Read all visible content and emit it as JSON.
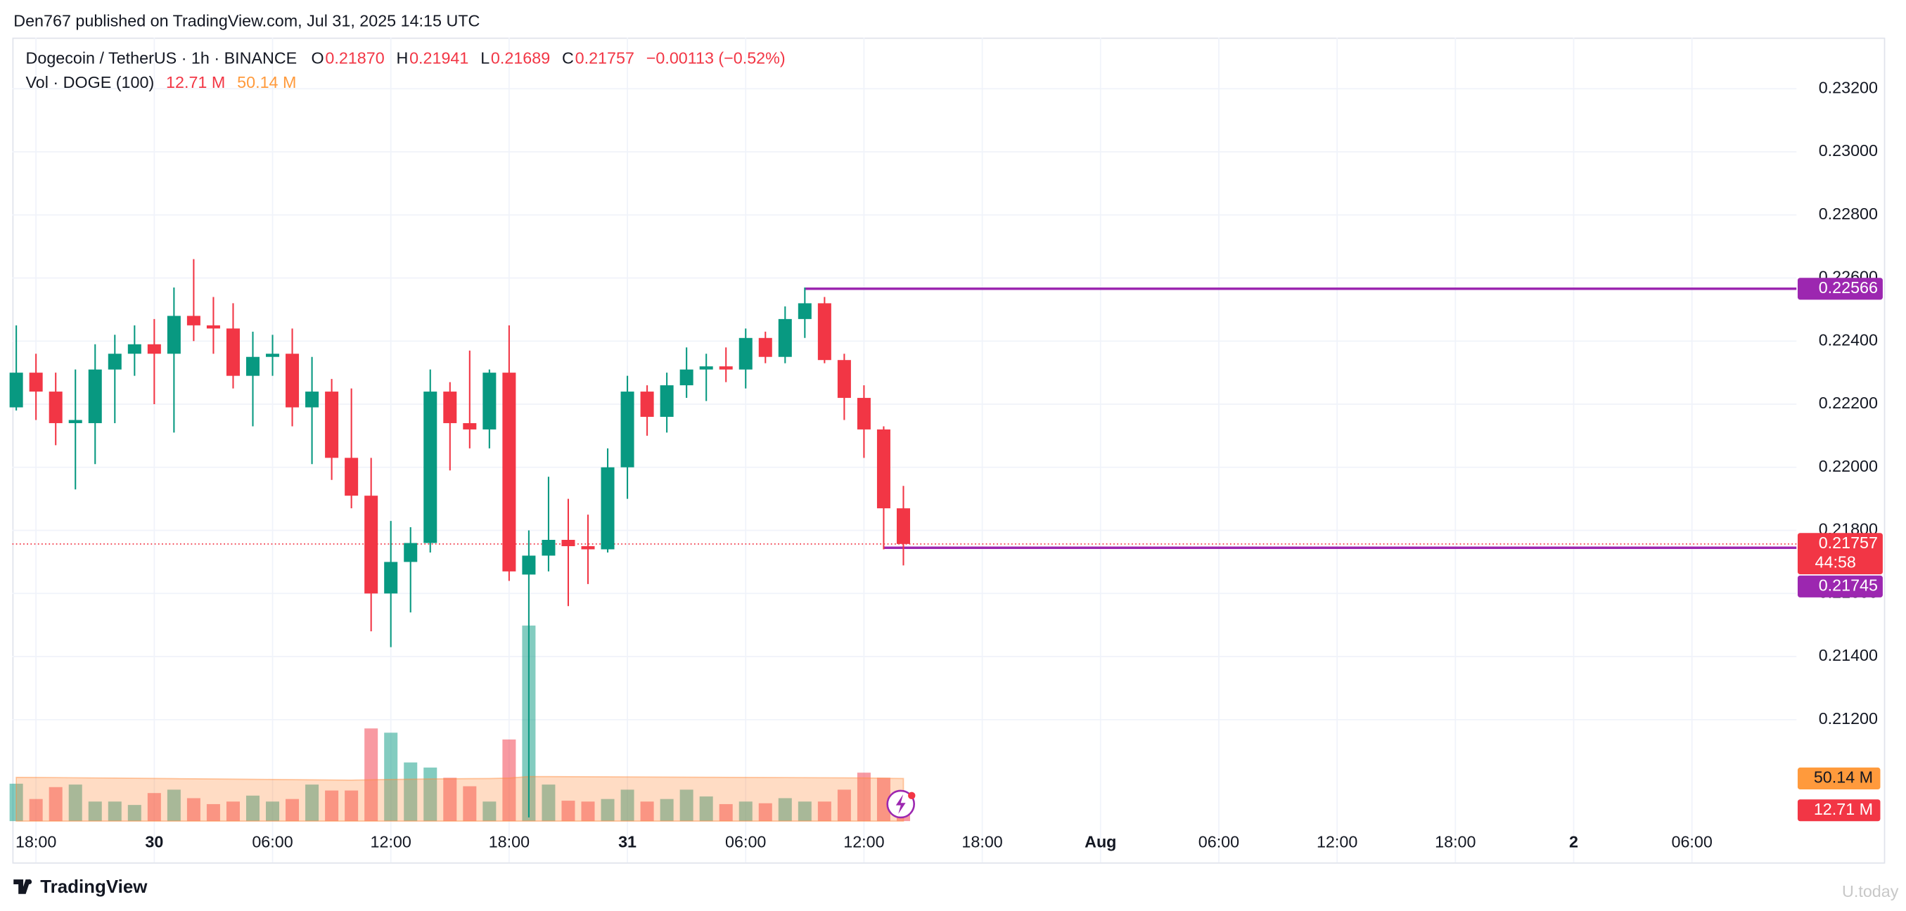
{
  "publisher": "Den767 published on TradingView.com, Jul 31, 2025 14:15 UTC",
  "footer": "TradingView",
  "watermark": "U.today",
  "chart_data": {
    "type": "candlestick",
    "symbol": "Dogecoin / TetherUS · 1h · BINANCE",
    "legend": {
      "o_label": "O",
      "open": "0.21870",
      "h_label": "H",
      "high": "0.21941",
      "l_label": "L",
      "low": "0.21689",
      "c_label": "C",
      "close": "0.21757",
      "change": "−0.00113 (−0.52%)"
    },
    "volume_legend": {
      "name": "Vol · DOGE (100)",
      "vol": "12.71 M",
      "vol_ma": "50.14 M"
    },
    "up_color": "#089981",
    "down_color": "#f23645",
    "volume_colors": {
      "up": "rgba(8,153,129,0.5)",
      "down": "rgba(242,54,69,0.5)",
      "ma": "rgba(255,138,60,0.3)"
    },
    "open": [
      0.2219,
      0.223,
      0.2224,
      0.2214,
      0.2214,
      0.2231,
      0.2236,
      0.2239,
      0.2236,
      0.2248,
      0.2245,
      0.2244,
      0.2229,
      0.2235,
      0.2236,
      0.2219,
      0.2224,
      0.2203,
      0.2191,
      0.216,
      0.217,
      0.2176,
      0.2224,
      0.2214,
      0.2212,
      0.223,
      0.2166,
      0.2172,
      0.2177,
      0.2175,
      0.2174,
      0.22,
      0.2224,
      0.2216,
      0.2226,
      0.2231,
      0.2232,
      0.2231,
      0.2241,
      0.2235,
      0.2247,
      0.2252,
      0.2234,
      0.2222,
      0.2212,
      0.2187
    ],
    "high": [
      0.2245,
      0.2236,
      0.223,
      0.2231,
      0.2239,
      0.2242,
      0.2245,
      0.2247,
      0.2257,
      0.2266,
      0.2254,
      0.2252,
      0.2243,
      0.2242,
      0.2244,
      0.2235,
      0.2228,
      0.2225,
      0.2203,
      0.2183,
      0.2181,
      0.2231,
      0.2227,
      0.2237,
      0.2231,
      0.2245,
      0.218,
      0.2197,
      0.219,
      0.2185,
      0.2206,
      0.2229,
      0.2226,
      0.223,
      0.2238,
      0.2236,
      0.2238,
      0.2244,
      0.2243,
      0.2251,
      0.2257,
      0.2254,
      0.2236,
      0.2226,
      0.2213,
      0.21941
    ],
    "low": [
      0.2218,
      0.2215,
      0.2207,
      0.2193,
      0.2201,
      0.2214,
      0.2229,
      0.222,
      0.2211,
      0.224,
      0.2236,
      0.2225,
      0.2213,
      0.2229,
      0.2213,
      0.2201,
      0.2196,
      0.2187,
      0.2148,
      0.2143,
      0.2154,
      0.2173,
      0.2199,
      0.2206,
      0.2206,
      0.2164,
      0.2089,
      0.2167,
      0.2156,
      0.2163,
      0.2173,
      0.219,
      0.221,
      0.2211,
      0.2222,
      0.2221,
      0.2227,
      0.2225,
      0.2233,
      0.2233,
      0.2241,
      0.2233,
      0.2215,
      0.2203,
      0.2174,
      0.21689
    ],
    "close": [
      0.223,
      0.2224,
      0.2214,
      0.2215,
      0.2231,
      0.2236,
      0.2239,
      0.2236,
      0.2248,
      0.2245,
      0.2244,
      0.2229,
      0.2235,
      0.2236,
      0.2219,
      0.2224,
      0.2203,
      0.2191,
      0.216,
      0.217,
      0.2176,
      0.2224,
      0.2214,
      0.2212,
      0.223,
      0.2167,
      0.2172,
      0.2177,
      0.2175,
      0.2174,
      0.22,
      0.2224,
      0.2216,
      0.2226,
      0.2231,
      0.2232,
      0.2231,
      0.2241,
      0.2235,
      0.2247,
      0.2252,
      0.2234,
      0.2222,
      0.2212,
      0.2187,
      0.21757
    ],
    "volume": [
      44,
      26,
      40,
      43,
      23,
      23,
      19,
      33,
      37,
      27,
      20,
      23,
      30,
      23,
      26,
      43,
      36,
      36,
      109,
      104,
      69,
      63,
      51,
      41,
      23,
      96,
      230,
      43,
      24,
      23,
      26,
      37,
      23,
      26,
      37,
      29,
      20,
      23,
      21,
      27,
      23,
      23,
      37,
      57,
      51,
      12.71
    ],
    "volume_ma": [
      51.5,
      51.4,
      51.2,
      51.0,
      50.8,
      50.6,
      50.4,
      50.2,
      50.0,
      49.8,
      49.6,
      49.4,
      49.2,
      49.0,
      48.8,
      48.6,
      48.4,
      48.2,
      48.6,
      49.0,
      49.3,
      49.6,
      49.8,
      50.0,
      50.1,
      50.6,
      52.4,
      52.4,
      52.3,
      52.2,
      52.1,
      52.0,
      51.9,
      51.8,
      51.7,
      51.6,
      51.5,
      51.4,
      51.3,
      51.2,
      51.1,
      51.0,
      50.9,
      50.7,
      50.4,
      50.14
    ],
    "xlim": [
      -0.2,
      90.3
    ],
    "xticks": [
      {
        "value": 1,
        "label": "18:00"
      },
      {
        "value": 7,
        "label": "30"
      },
      {
        "value": 13,
        "label": "06:00"
      },
      {
        "value": 19,
        "label": "12:00"
      },
      {
        "value": 25,
        "label": "18:00"
      },
      {
        "value": 31,
        "label": "31"
      },
      {
        "value": 37,
        "label": "06:00"
      },
      {
        "value": 43,
        "label": "12:00"
      },
      {
        "value": 49,
        "label": "18:00"
      },
      {
        "value": 55,
        "label": "Aug"
      },
      {
        "value": 61,
        "label": "06:00"
      },
      {
        "value": 67,
        "label": "12:00"
      },
      {
        "value": 73,
        "label": "18:00"
      },
      {
        "value": 79,
        "label": "2"
      },
      {
        "value": 85,
        "label": "06:00"
      }
    ],
    "ylim": [
      0.20863,
      0.23362
    ],
    "yticks": [
      {
        "value": 0.212,
        "label": "0.21200"
      },
      {
        "value": 0.214,
        "label": "0.21400"
      },
      {
        "value": 0.216,
        "label": "0.21600"
      },
      {
        "value": 0.218,
        "label": "0.21800"
      },
      {
        "value": 0.22,
        "label": "0.22000"
      },
      {
        "value": 0.222,
        "label": "0.22200"
      },
      {
        "value": 0.224,
        "label": "0.22400"
      },
      {
        "value": 0.226,
        "label": "0.22600"
      },
      {
        "value": 0.228,
        "label": "0.22800"
      },
      {
        "value": 0.23,
        "label": "0.23000"
      },
      {
        "value": 0.232,
        "label": "0.23200"
      }
    ],
    "grid": true,
    "levels": [
      {
        "value": 0.22566,
        "label": "0.22566",
        "x": 40
      },
      {
        "value": 0.21745,
        "label": "0.21745",
        "x": 44
      }
    ],
    "level_color": "#9c27b0",
    "last": {
      "value": 0.21757,
      "label": "0.21757",
      "countdown": "44:58"
    }
  }
}
